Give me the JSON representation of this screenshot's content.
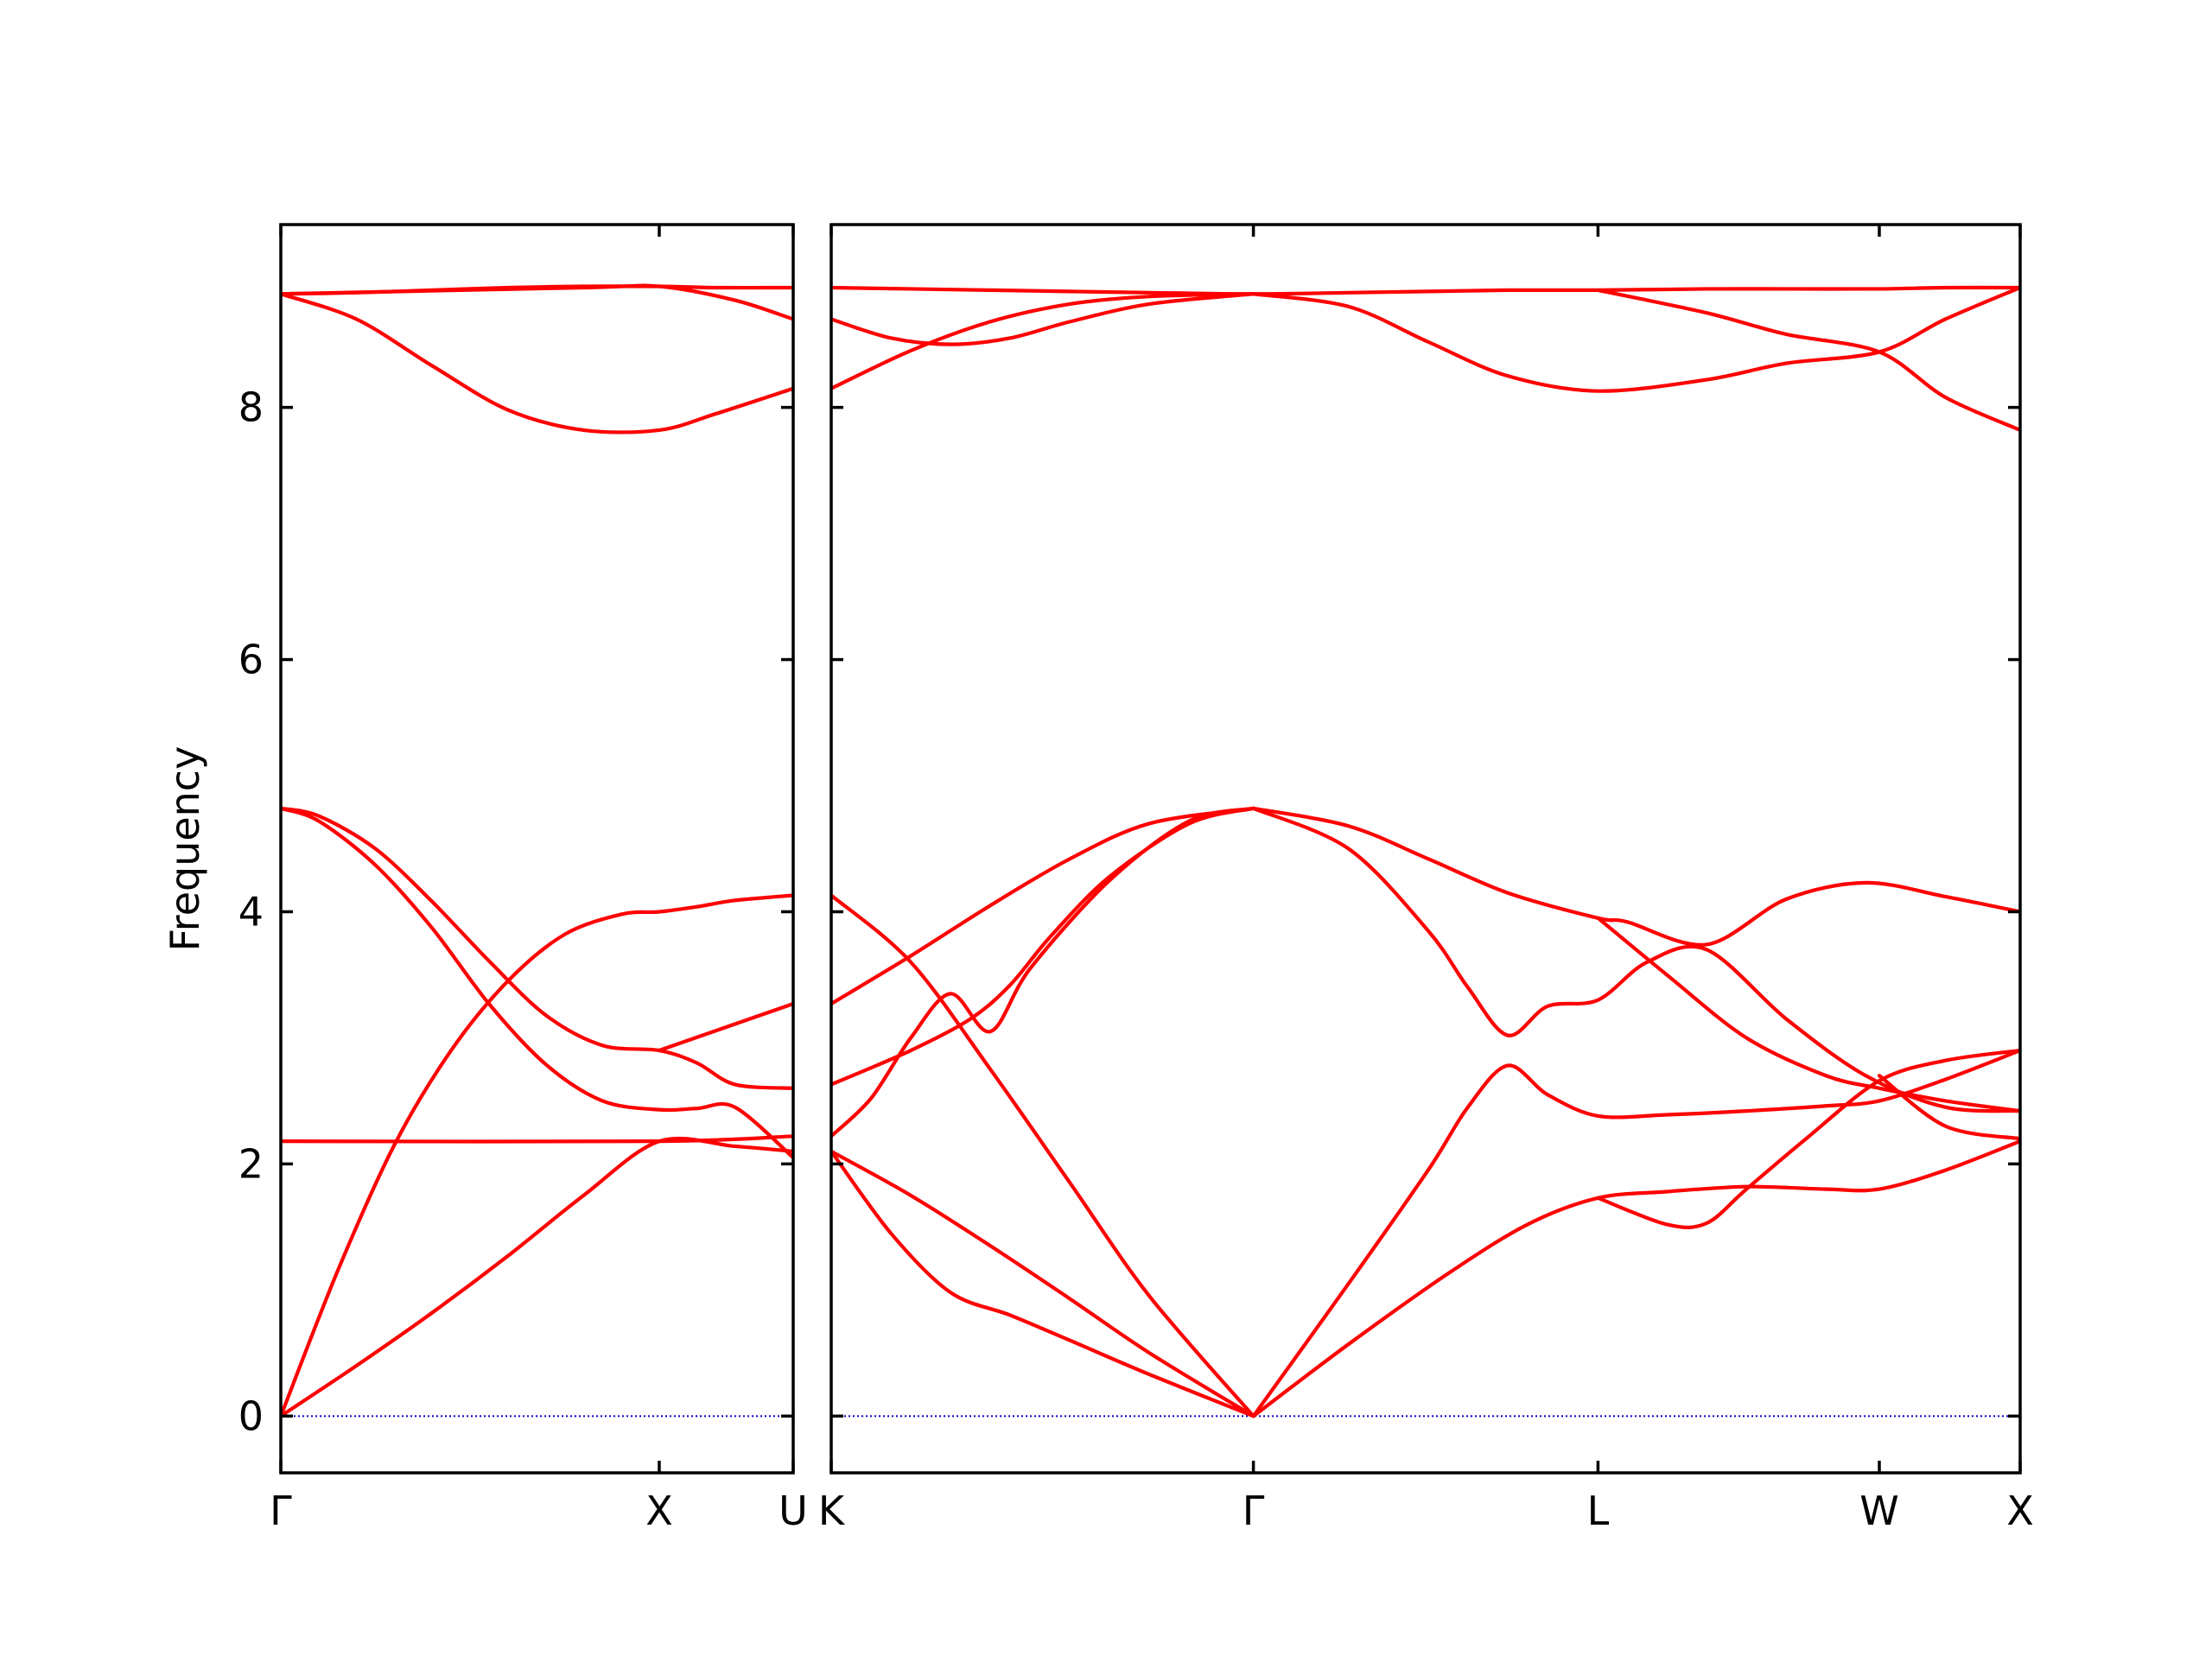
{
  "chart_data": {
    "type": "line",
    "title": "",
    "ylabel": "Frequency",
    "ylim": [
      -0.45,
      9.45
    ],
    "yticks": [
      0,
      2,
      4,
      6,
      8
    ],
    "grid": false,
    "colors": {
      "bands": "#ff0000",
      "zero_line": "#0000cc",
      "frame": "#000000"
    },
    "panels": [
      {
        "name": "Gamma-X-U",
        "x_ticks": [
          {
            "x": 0.0,
            "label": "Γ"
          },
          {
            "x": 1.0,
            "label": "X"
          },
          {
            "x": 1.354,
            "label": "U"
          }
        ],
        "xlim": [
          0,
          1.354
        ],
        "bands": [
          {
            "x": [
              0,
              0.2,
              0.4,
              0.6,
              0.8,
              1.0,
              1.2,
              1.354
            ],
            "y": [
              0.0,
              0.4,
              0.82,
              1.27,
              1.75,
              2.18,
              2.14,
              2.1
            ]
          },
          {
            "x": [
              0,
              0.15,
              0.3,
              0.45,
              0.6,
              0.75,
              0.9,
              1.0,
              1.1,
              1.2,
              1.354
            ],
            "y": [
              0.0,
              1.15,
              2.15,
              2.9,
              3.45,
              3.82,
              3.98,
              4.0,
              4.04,
              4.09,
              4.13
            ]
          },
          {
            "x": [
              0,
              0.1,
              0.25,
              0.4,
              0.55,
              0.7,
              0.85,
              1.0,
              1.1,
              1.2,
              1.354
            ],
            "y": [
              4.82,
              4.72,
              4.37,
              3.87,
              3.27,
              2.79,
              2.5,
              2.43,
              2.44,
              2.45,
              2.05
            ]
          },
          {
            "x": [
              0,
              0.1,
              0.25,
              0.4,
              0.55,
              0.7,
              0.85,
              1.0,
              1.1,
              1.2,
              1.354
            ],
            "y": [
              4.82,
              4.76,
              4.5,
              4.08,
              3.61,
              3.18,
              2.94,
              2.9,
              2.8,
              2.63,
              2.6
            ]
          },
          {
            "x": [
              0,
              1.0,
              1.354
            ],
            "y": [
              2.18,
              2.18,
              2.22
            ]
          },
          {
            "x": [
              0,
              0.2,
              0.4,
              0.6,
              0.8,
              1.0,
              1.15,
              1.354
            ],
            "y": [
              8.9,
              8.91,
              8.93,
              8.95,
              8.96,
              8.96,
              8.95,
              8.95
            ]
          },
          {
            "x": [
              0,
              0.2,
              0.4,
              0.6,
              0.8,
              1.0,
              1.15,
              1.354
            ],
            "y": [
              8.9,
              8.7,
              8.33,
              7.98,
              7.82,
              7.82,
              7.95,
              8.15
            ]
          },
          {
            "x": [
              0,
              0.8,
              1.0,
              1.2,
              1.354
            ],
            "y": [
              8.9,
              8.95,
              8.96,
              8.85,
              8.7
            ]
          },
          {
            "x": [
              1.0,
              1.354
            ],
            "y": [
              2.9,
              3.27
            ]
          }
        ]
      },
      {
        "name": "K-Gamma-L-W-X",
        "x_ticks": [
          {
            "x": 0.0,
            "label": "K"
          },
          {
            "x": 1.061,
            "label": "Γ"
          },
          {
            "x": 1.927,
            "label": "L"
          },
          {
            "x": 2.634,
            "label": "W"
          },
          {
            "x": 2.988,
            "label": "X"
          }
        ],
        "xlim": [
          0,
          2.988
        ],
        "bands": [
          {
            "x": [
              0,
              0.2,
              0.4,
              0.6,
              0.8,
              1.061
            ],
            "y": [
              2.1,
              1.75,
              1.35,
              0.93,
              0.5,
              0.0
            ]
          },
          {
            "x": [
              0,
              0.15,
              0.3,
              0.45,
              0.6,
              0.8,
              1.061
            ],
            "y": [
              2.1,
              1.45,
              0.98,
              0.8,
              0.6,
              0.33,
              0.0
            ]
          },
          {
            "x": [
              0,
              0.2,
              0.4,
              0.6,
              0.8,
              1.061
            ],
            "y": [
              4.13,
              3.6,
              2.75,
              1.85,
              0.95,
              0.0
            ]
          },
          {
            "x": [
              1.061,
              1.3,
              1.55,
              1.75,
              1.927,
              2.1,
              2.3,
              2.5,
              2.634,
              2.8,
              2.988
            ],
            "y": [
              0.0,
              0.57,
              1.13,
              1.52,
              1.73,
              1.78,
              1.82,
              1.8,
              1.8,
              1.95,
              2.18
            ]
          },
          {
            "x": [
              1.061,
              1.3,
              1.5,
              1.6,
              1.7,
              1.8,
              1.927,
              2.1,
              2.3,
              2.5,
              2.634,
              2.8,
              2.988
            ],
            "y": [
              0.0,
              1.05,
              1.95,
              2.45,
              2.78,
              2.55,
              2.38,
              2.39,
              2.42,
              2.46,
              2.5,
              2.67,
              2.9
            ]
          },
          {
            "x": [
              1.061,
              1.3,
              1.5,
              1.6,
              1.7,
              1.8,
              1.927,
              2.05,
              2.2,
              2.4,
              2.6,
              2.8,
              2.988
            ],
            "y": [
              4.82,
              4.5,
              3.85,
              3.4,
              3.02,
              3.25,
              3.3,
              3.6,
              3.7,
              3.15,
              2.7,
              2.45,
              2.42
            ]
          },
          {
            "x": [
              1.061,
              1.3,
              1.5,
              1.7,
              1.927,
              2.0,
              2.2,
              2.4,
              2.6,
              2.8,
              2.988
            ],
            "y": [
              4.82,
              4.68,
              4.42,
              4.15,
              3.95,
              3.92,
              3.74,
              4.1,
              4.23,
              4.12,
              4.0
            ]
          },
          {
            "x": [
              1.927,
              2.1,
              2.3,
              2.5,
              2.634,
              2.8,
              2.988
            ],
            "y": [
              3.95,
              3.5,
              3.0,
              2.7,
              2.6,
              2.5,
              2.42
            ]
          },
          {
            "x": [
              1.927,
              2.1,
              2.2,
              2.3,
              2.45,
              2.634,
              2.8,
              2.988
            ],
            "y": [
              1.73,
              1.52,
              1.53,
              1.8,
              2.2,
              2.66,
              2.82,
              2.9
            ]
          },
          {
            "x": [
              2.634,
              2.8,
              2.988
            ],
            "y": [
              2.7,
              2.3,
              2.2
            ]
          },
          {
            "x": [
              0,
              0.1,
              0.2,
              0.3,
              0.4,
              0.5,
              0.7,
              0.9,
              1.061
            ],
            "y": [
              2.22,
              2.52,
              3.0,
              3.35,
              3.05,
              3.55,
              4.25,
              4.72,
              4.82
            ]
          },
          {
            "x": [
              0,
              0.2,
              0.35,
              0.45,
              0.55,
              0.7,
              0.9,
              1.061
            ],
            "y": [
              2.63,
              2.9,
              3.15,
              3.42,
              3.8,
              4.28,
              4.7,
              4.82
            ]
          },
          {
            "x": [
              0,
              0.2,
              0.4,
              0.6,
              0.8,
              1.061
            ],
            "y": [
              3.27,
              3.65,
              4.05,
              4.42,
              4.7,
              4.82
            ]
          },
          {
            "x": [
              0,
              0.2,
              0.4,
              0.6,
              0.8,
              1.061,
              1.3,
              1.5,
              1.7,
              1.927,
              2.2,
              2.4,
              2.634,
              2.8,
              2.988
            ],
            "y": [
              8.95,
              8.94,
              8.93,
              8.92,
              8.91,
              8.9,
              8.91,
              8.92,
              8.93,
              8.93,
              8.94,
              8.94,
              8.94,
              8.95,
              8.95
            ]
          },
          {
            "x": [
              0,
              0.2,
              0.4,
              0.6,
              0.8,
              1.061
            ],
            "y": [
              8.15,
              8.45,
              8.68,
              8.82,
              8.88,
              8.9
            ]
          },
          {
            "x": [
              0,
              0.15,
              0.3,
              0.45,
              0.6,
              0.8,
              1.061
            ],
            "y": [
              8.7,
              8.55,
              8.5,
              8.55,
              8.68,
              8.82,
              8.9
            ]
          },
          {
            "x": [
              1.061,
              1.3,
              1.5,
              1.7,
              1.927,
              2.2,
              2.4,
              2.634,
              2.8,
              2.988
            ],
            "y": [
              8.9,
              8.8,
              8.52,
              8.25,
              8.13,
              8.22,
              8.35,
              8.44,
              8.7,
              8.95
            ]
          },
          {
            "x": [
              1.927,
              2.2,
              2.4,
              2.634,
              2.8,
              2.988
            ],
            "y": [
              8.93,
              8.75,
              8.58,
              8.44,
              8.08,
              7.82
            ]
          }
        ]
      }
    ]
  }
}
